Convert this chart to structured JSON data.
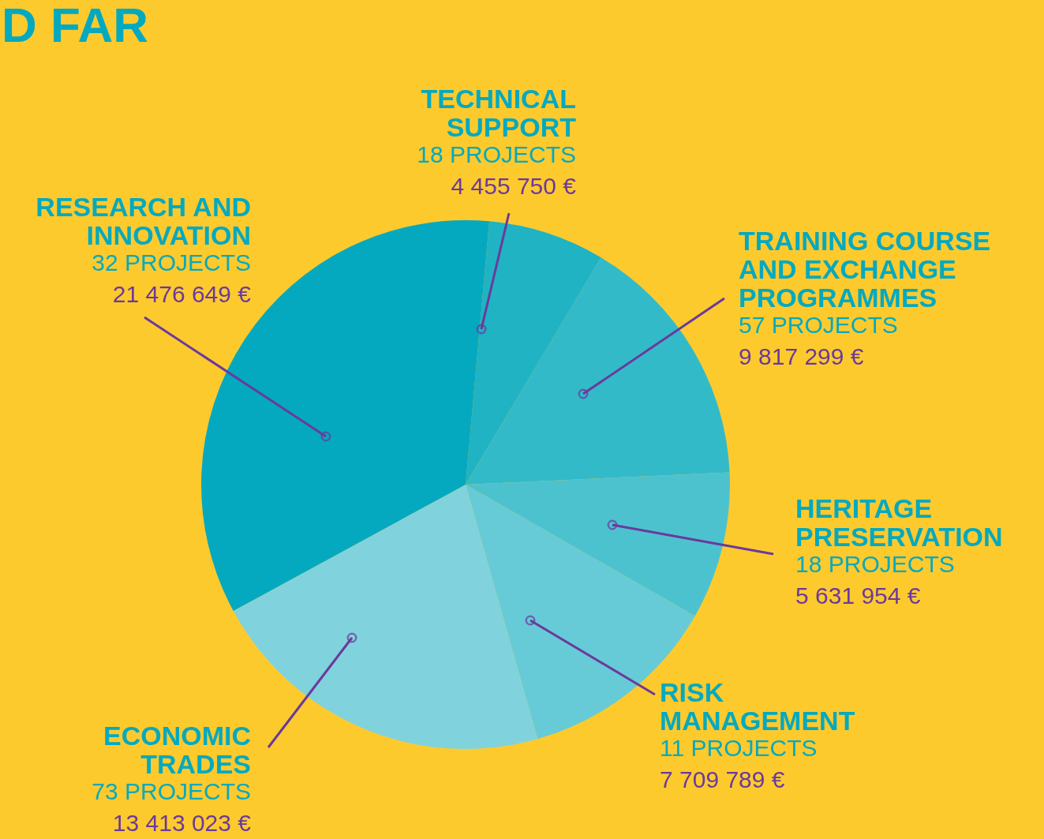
{
  "chart_data": {
    "type": "pie",
    "title": "D FAR",
    "categories": [
      "TECHNICAL SUPPORT",
      "TRAINING COURSE AND EXCHANGE PROGRAMMES",
      "HERITAGE PRESERVATION",
      "RISK MANAGEMENT",
      "ECONOMIC TRADES",
      "RESEARCH AND INNOVATION"
    ],
    "values": [
      4455750,
      9817299,
      5631954,
      7709789,
      13413023,
      21476649
    ],
    "value_labels": [
      "4 455 750 €",
      "9 817 299 €",
      "5 631 954 €",
      "7 709 789 €",
      "13 413 023 €",
      "21 476 649 €"
    ],
    "colors": [
      "#1fb3c4",
      "#33bac9",
      "#4dc2cf",
      "#66cbd6",
      "#80d3dd",
      "#05a9bf"
    ],
    "annotations": [
      "18 PROJECTS",
      "57 PROJECTS",
      "18 PROJECTS",
      "11 PROJECTS",
      "73 PROJECTS",
      "32 PROJECTS"
    ]
  }
}
